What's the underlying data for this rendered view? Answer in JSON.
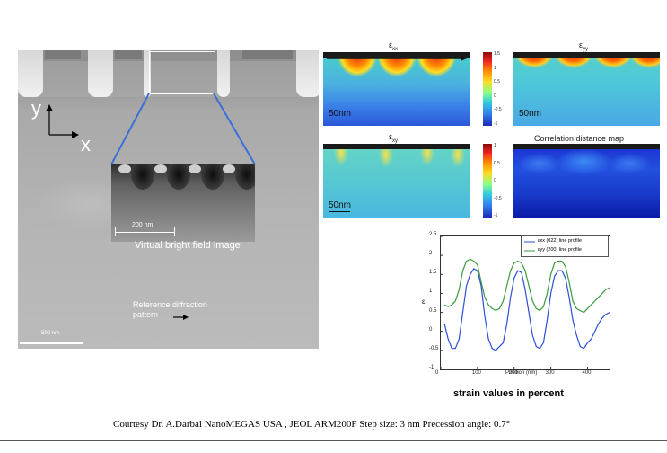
{
  "tem": {
    "axis_y": "y",
    "axis_x": "x",
    "inset_scalebar": "200 nm",
    "inset_caption": "Virtual bright field image",
    "reference_label_line1": "Reference diffraction",
    "reference_label_line2": "pattern",
    "scalebar": "500 nm"
  },
  "maps": {
    "exx_title": "ε",
    "exx_sub": "xx",
    "eyy_title": "ε",
    "eyy_sub": "yy",
    "exy_title": "ε",
    "exy_sub": "xy",
    "corr_title": "Correlation distance map",
    "scale_label": "50nm",
    "colorbar_ticks_top": [
      "1.5",
      "1",
      "0.5",
      "0",
      "-0.5",
      "-1"
    ],
    "colorbar_ticks_bottom": [
      "1",
      "0.5",
      "0",
      "-0.5",
      "-1"
    ]
  },
  "chart_data": {
    "type": "line",
    "xlabel": "Position (nm)",
    "ylabel": "ε",
    "xlim": [
      0,
      460
    ],
    "ylim": [
      -1,
      2.5
    ],
    "xticks": [
      0,
      100,
      200,
      300,
      400
    ],
    "yticks": [
      -1,
      -0.5,
      0,
      0.5,
      1,
      1.5,
      2,
      2.5
    ],
    "series": [
      {
        "name": "εxx (022) line profile",
        "color": "#2b4fd8",
        "x": [
          10,
          20,
          30,
          40,
          50,
          60,
          70,
          80,
          90,
          100,
          110,
          120,
          130,
          140,
          150,
          160,
          170,
          180,
          190,
          200,
          210,
          220,
          230,
          240,
          250,
          260,
          270,
          280,
          290,
          300,
          310,
          320,
          330,
          340,
          350,
          360,
          370,
          380,
          390,
          400,
          410,
          420,
          430,
          440,
          450,
          460
        ],
        "values": [
          0.2,
          -0.2,
          -0.45,
          -0.45,
          -0.2,
          0.5,
          1.2,
          1.5,
          1.65,
          1.6,
          1.2,
          0.4,
          -0.2,
          -0.45,
          -0.5,
          -0.4,
          -0.3,
          0.2,
          0.9,
          1.4,
          1.6,
          1.55,
          1.1,
          0.5,
          -0.1,
          -0.4,
          -0.45,
          -0.3,
          0.3,
          1.0,
          1.45,
          1.6,
          1.6,
          1.4,
          0.9,
          0.3,
          -0.1,
          -0.4,
          -0.45,
          -0.3,
          -0.2,
          0.0,
          0.2,
          0.35,
          0.45,
          0.5
        ]
      },
      {
        "name": "εyy (200) line profile",
        "color": "#3c9a3c",
        "x": [
          10,
          20,
          30,
          40,
          50,
          60,
          70,
          80,
          90,
          100,
          110,
          120,
          130,
          140,
          150,
          160,
          170,
          180,
          190,
          200,
          210,
          220,
          230,
          240,
          250,
          260,
          270,
          280,
          290,
          300,
          310,
          320,
          330,
          340,
          350,
          360,
          370,
          380,
          390,
          400,
          410,
          420,
          430,
          440,
          450,
          460
        ],
        "values": [
          0.7,
          0.65,
          0.7,
          0.8,
          1.1,
          1.6,
          1.85,
          1.9,
          1.85,
          1.75,
          1.3,
          0.9,
          0.7,
          0.6,
          0.55,
          0.6,
          0.8,
          1.2,
          1.6,
          1.8,
          1.85,
          1.8,
          1.6,
          1.2,
          0.8,
          0.6,
          0.55,
          0.65,
          1.0,
          1.5,
          1.8,
          1.85,
          1.85,
          1.7,
          1.3,
          0.8,
          0.6,
          0.55,
          0.5,
          0.6,
          0.7,
          0.8,
          0.9,
          1.0,
          1.1,
          1.15
        ]
      }
    ]
  },
  "caption": {
    "chart_caption": "strain values in percent",
    "credit": "Courtesy  Dr. A.Darbal  NanoMEGAS USA , JEOL ARM200F  Step size: 3 nm Precession angle: 0.7°"
  }
}
